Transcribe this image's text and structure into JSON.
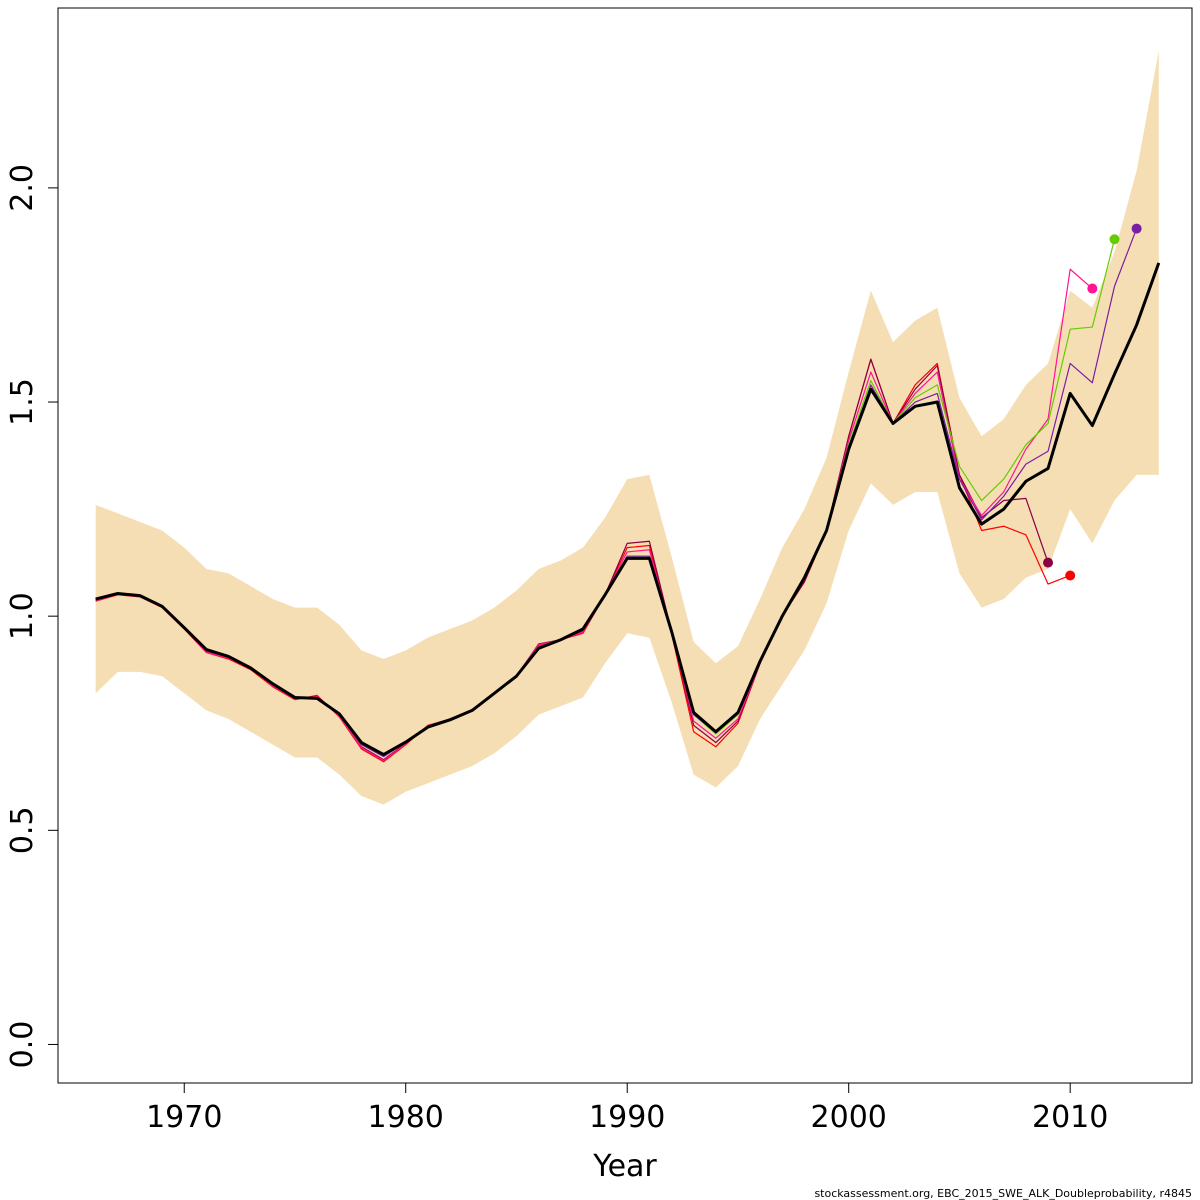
{
  "chart_data": {
    "type": "line",
    "xlabel": "Year",
    "ylabel": "",
    "xlim": [
      1964.3,
      2015.5
    ],
    "ylim": [
      -0.09,
      2.42
    ],
    "x_ticks": [
      1970,
      1980,
      1990,
      2000,
      2010
    ],
    "x_tick_labels": [
      "1970",
      "1980",
      "1990",
      "2000",
      "2010"
    ],
    "y_ticks": [
      0,
      0.5,
      1,
      1.5,
      2
    ],
    "y_tick_labels": [
      "0.0",
      "0.5",
      "1.0",
      "1.5",
      "2.0"
    ],
    "grid": false,
    "band": {
      "color": "#F5DEB3",
      "x": [
        1966,
        1967,
        1968,
        1969,
        1970,
        1971,
        1972,
        1973,
        1974,
        1975,
        1976,
        1977,
        1978,
        1979,
        1980,
        1981,
        1982,
        1983,
        1984,
        1985,
        1986,
        1987,
        1988,
        1989,
        1990,
        1991,
        1992,
        1993,
        1994,
        1995,
        1996,
        1997,
        1998,
        1999,
        2000,
        2001,
        2002,
        2003,
        2004,
        2005,
        2006,
        2007,
        2008,
        2009,
        2010,
        2011,
        2012,
        2013,
        2014
      ],
      "upper": [
        1.26,
        1.24,
        1.22,
        1.2,
        1.16,
        1.11,
        1.1,
        1.07,
        1.04,
        1.02,
        1.02,
        0.98,
        0.92,
        0.9,
        0.92,
        0.95,
        0.97,
        0.99,
        1.02,
        1.06,
        1.11,
        1.13,
        1.16,
        1.23,
        1.32,
        1.33,
        1.14,
        0.94,
        0.89,
        0.93,
        1.04,
        1.16,
        1.25,
        1.37,
        1.57,
        1.76,
        1.64,
        1.69,
        1.72,
        1.51,
        1.42,
        1.46,
        1.54,
        1.59,
        1.76,
        1.72,
        1.85,
        2.04,
        2.32
      ],
      "lower": [
        0.82,
        0.87,
        0.87,
        0.86,
        0.82,
        0.78,
        0.76,
        0.73,
        0.7,
        0.67,
        0.67,
        0.63,
        0.58,
        0.56,
        0.59,
        0.61,
        0.63,
        0.65,
        0.68,
        0.72,
        0.77,
        0.79,
        0.81,
        0.89,
        0.96,
        0.95,
        0.8,
        0.63,
        0.6,
        0.65,
        0.76,
        0.84,
        0.92,
        1.03,
        1.2,
        1.31,
        1.26,
        1.29,
        1.29,
        1.1,
        1.02,
        1.04,
        1.09,
        1.11,
        1.25,
        1.17,
        1.27,
        1.33,
        1.33
      ]
    },
    "series": [
      {
        "color": "#FF0000",
        "x": [
          1966,
          1967,
          1968,
          1969,
          1970,
          1971,
          1972,
          1973,
          1974,
          1975,
          1976,
          1977,
          1978,
          1979,
          1980,
          1981,
          1982,
          1983,
          1984,
          1985,
          1986,
          1987,
          1988,
          1989,
          1990,
          1991,
          1992,
          1993,
          1994,
          1995,
          1996,
          1997,
          1998,
          1999,
          2000,
          2001,
          2002,
          2003,
          2004,
          2005,
          2006,
          2007,
          2008,
          2009,
          2010
        ],
        "y": [
          1.035,
          1.05,
          1.045,
          1.02,
          0.97,
          0.915,
          0.9,
          0.875,
          0.835,
          0.805,
          0.815,
          0.765,
          0.69,
          0.66,
          0.7,
          0.745,
          0.76,
          0.78,
          0.82,
          0.86,
          0.93,
          0.945,
          0.96,
          1.05,
          1.16,
          1.165,
          0.96,
          0.73,
          0.695,
          0.75,
          0.89,
          1.0,
          1.08,
          1.2,
          1.42,
          1.6,
          1.45,
          1.54,
          1.59,
          1.33,
          1.2,
          1.21,
          1.19,
          1.075,
          1.095
        ],
        "end_point": true
      },
      {
        "color": "#8B0045",
        "x": [
          1966,
          1967,
          1968,
          1969,
          1970,
          1971,
          1972,
          1973,
          1974,
          1975,
          1976,
          1977,
          1978,
          1979,
          1980,
          1981,
          1982,
          1983,
          1984,
          1985,
          1986,
          1987,
          1988,
          1989,
          1990,
          1991,
          1992,
          1993,
          1994,
          1995,
          1996,
          1997,
          1998,
          1999,
          2000,
          2001,
          2002,
          2003,
          2004,
          2005,
          2006,
          2007,
          2008,
          2009
        ],
        "y": [
          1.037,
          1.052,
          1.047,
          1.022,
          0.972,
          0.918,
          0.903,
          0.878,
          0.838,
          0.808,
          0.812,
          0.768,
          0.695,
          0.665,
          0.703,
          0.743,
          0.76,
          0.78,
          0.82,
          0.86,
          0.935,
          0.945,
          0.965,
          1.05,
          1.17,
          1.175,
          0.965,
          0.745,
          0.705,
          0.755,
          0.89,
          1.0,
          1.08,
          1.2,
          1.42,
          1.6,
          1.45,
          1.53,
          1.585,
          1.33,
          1.23,
          1.27,
          1.275,
          1.125
        ],
        "end_point": true
      },
      {
        "color": "#FF1493",
        "x": [
          1966,
          1967,
          1968,
          1969,
          1970,
          1971,
          1972,
          1973,
          1974,
          1975,
          1976,
          1977,
          1978,
          1979,
          1980,
          1981,
          1982,
          1983,
          1984,
          1985,
          1986,
          1987,
          1988,
          1989,
          1990,
          1991,
          1992,
          1993,
          1994,
          1995,
          1996,
          1997,
          1998,
          1999,
          2000,
          2001,
          2002,
          2003,
          2004,
          2005,
          2006,
          2007,
          2008,
          2009,
          2010,
          2011
        ],
        "y": [
          1.036,
          1.051,
          1.046,
          1.021,
          0.971,
          0.916,
          0.902,
          0.877,
          0.837,
          0.807,
          0.812,
          0.767,
          0.693,
          0.663,
          0.702,
          0.744,
          0.76,
          0.78,
          0.82,
          0.86,
          0.933,
          0.945,
          0.963,
          1.05,
          1.15,
          1.155,
          0.962,
          0.755,
          0.715,
          0.76,
          0.89,
          1.0,
          1.085,
          1.2,
          1.41,
          1.57,
          1.45,
          1.52,
          1.57,
          1.32,
          1.235,
          1.29,
          1.39,
          1.46,
          1.81,
          1.765
        ],
        "end_point": true
      },
      {
        "color": "#66CC00",
        "x": [
          1966,
          1967,
          1968,
          1969,
          1970,
          1971,
          1972,
          1973,
          1974,
          1975,
          1976,
          1977,
          1978,
          1979,
          1980,
          1981,
          1982,
          1983,
          1984,
          1985,
          1986,
          1987,
          1988,
          1989,
          1990,
          1991,
          1992,
          1993,
          1994,
          1995,
          1996,
          1997,
          1998,
          1999,
          2000,
          2001,
          2002,
          2003,
          2004,
          2005,
          2006,
          2007,
          2008,
          2009,
          2010,
          2011,
          2012
        ],
        "y": [
          1.038,
          1.052,
          1.047,
          1.022,
          0.972,
          0.92,
          0.905,
          0.878,
          0.84,
          0.808,
          0.81,
          0.77,
          0.7,
          0.673,
          0.705,
          0.742,
          0.76,
          0.78,
          0.82,
          0.86,
          0.927,
          0.945,
          0.968,
          1.05,
          1.14,
          1.14,
          0.965,
          0.77,
          0.725,
          0.77,
          0.895,
          1.0,
          1.09,
          1.2,
          1.4,
          1.55,
          1.45,
          1.51,
          1.54,
          1.35,
          1.27,
          1.32,
          1.4,
          1.45,
          1.67,
          1.675,
          1.88
        ],
        "end_point": true
      },
      {
        "color": "#7A1FA2",
        "x": [
          1966,
          1967,
          1968,
          1969,
          1970,
          1971,
          1972,
          1973,
          1974,
          1975,
          1976,
          1977,
          1978,
          1979,
          1980,
          1981,
          1982,
          1983,
          1984,
          1985,
          1986,
          1987,
          1988,
          1989,
          1990,
          1991,
          1992,
          1993,
          1994,
          1995,
          1996,
          1997,
          1998,
          1999,
          2000,
          2001,
          2002,
          2003,
          2004,
          2005,
          2006,
          2007,
          2008,
          2009,
          2010,
          2011,
          2012,
          2013
        ],
        "y": [
          1.038,
          1.052,
          1.047,
          1.022,
          0.972,
          0.92,
          0.905,
          0.878,
          0.84,
          0.808,
          0.81,
          0.77,
          0.7,
          0.672,
          0.705,
          0.742,
          0.76,
          0.78,
          0.82,
          0.86,
          0.927,
          0.945,
          0.967,
          1.05,
          1.14,
          1.14,
          0.965,
          0.77,
          0.728,
          0.772,
          0.895,
          1.0,
          1.09,
          1.2,
          1.39,
          1.54,
          1.45,
          1.5,
          1.52,
          1.32,
          1.225,
          1.28,
          1.355,
          1.385,
          1.59,
          1.545,
          1.77,
          1.905
        ],
        "end_point": true
      },
      {
        "color": "#000000",
        "bold": true,
        "x": [
          1966,
          1967,
          1968,
          1969,
          1970,
          1971,
          1972,
          1973,
          1974,
          1975,
          1976,
          1977,
          1978,
          1979,
          1980,
          1981,
          1982,
          1983,
          1984,
          1985,
          1986,
          1987,
          1988,
          1989,
          1990,
          1991,
          1992,
          1993,
          1994,
          1995,
          1996,
          1997,
          1998,
          1999,
          2000,
          2001,
          2002,
          2003,
          2004,
          2005,
          2006,
          2007,
          2008,
          2009,
          2010,
          2011,
          2012,
          2013,
          2014
        ],
        "y": [
          1.04,
          1.053,
          1.048,
          1.023,
          0.973,
          0.922,
          0.906,
          0.879,
          0.842,
          0.81,
          0.808,
          0.772,
          0.705,
          0.677,
          0.706,
          0.741,
          0.758,
          0.78,
          0.82,
          0.86,
          0.925,
          0.945,
          0.97,
          1.05,
          1.135,
          1.135,
          0.965,
          0.775,
          0.73,
          0.775,
          0.895,
          1.0,
          1.09,
          1.2,
          1.39,
          1.53,
          1.45,
          1.49,
          1.5,
          1.3,
          1.215,
          1.25,
          1.315,
          1.345,
          1.52,
          1.445,
          1.565,
          1.68,
          1.825
        ],
        "end_point": false
      }
    ]
  },
  "footer": "stockassessment.org, EBC_2015_SWE_ALK_Doubleprobability, r4845"
}
